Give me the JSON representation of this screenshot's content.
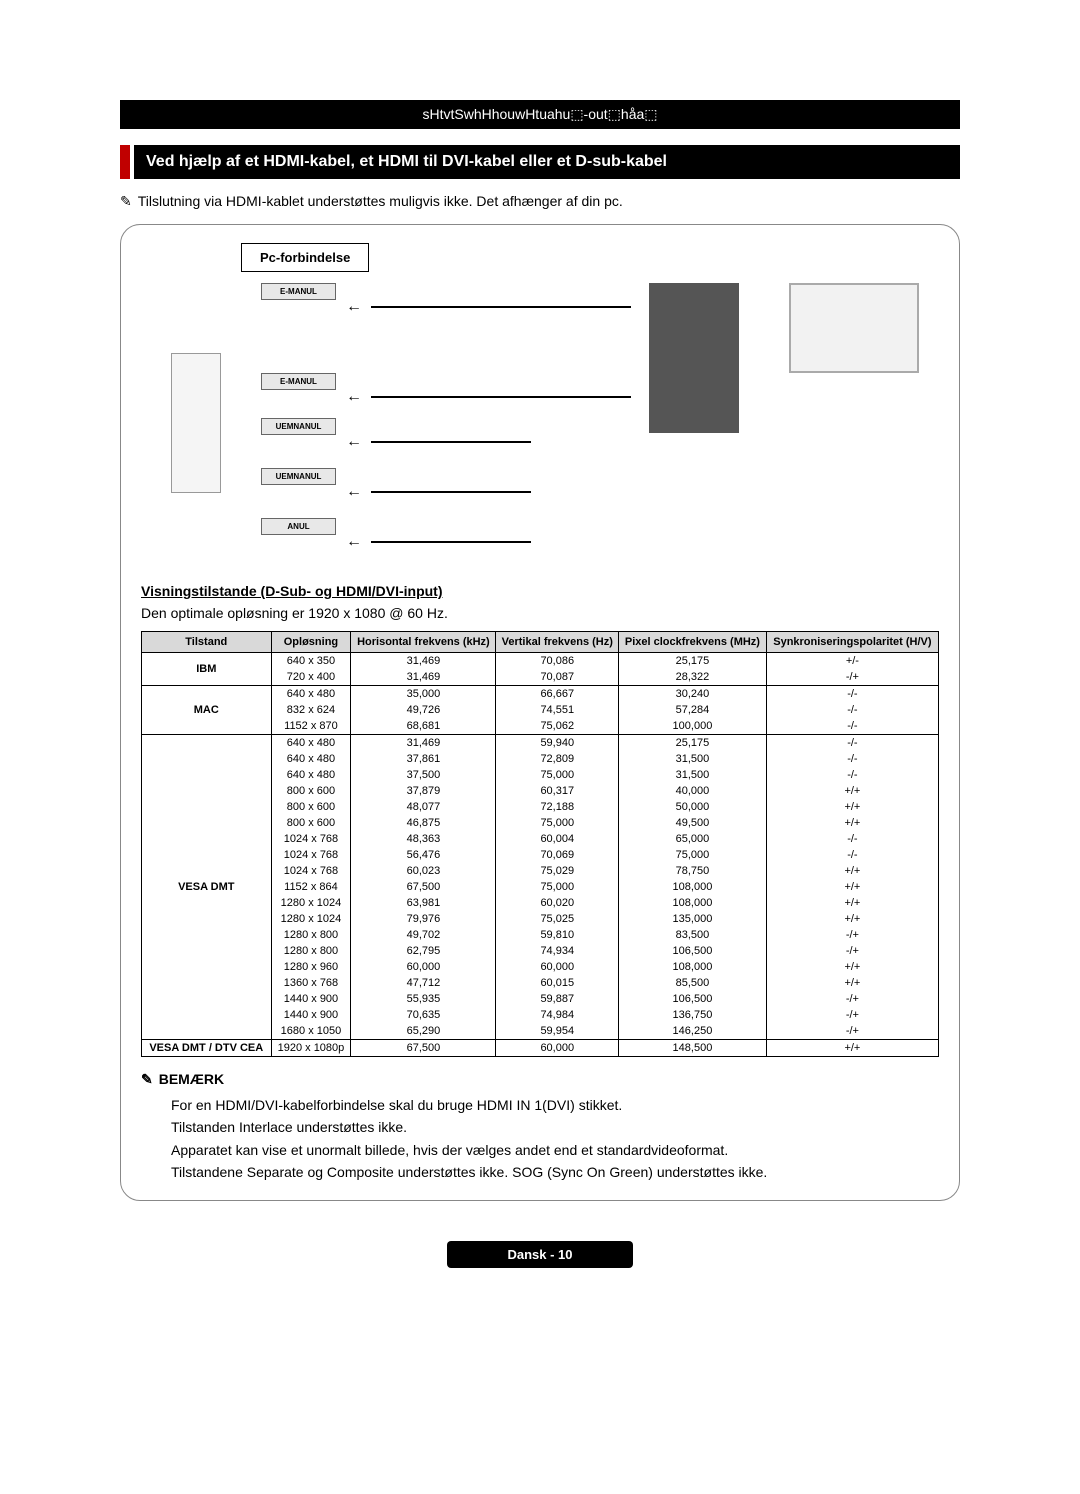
{
  "banner": "sHtvtSwhHhouwHtuahu⬚-out⬚håa⬚",
  "section_title": "Ved hjælp af et HDMI-kabel, et HDMI til DVI-kabel eller et D-sub-kabel",
  "top_note": "Tilslutning via HDMI-kablet understøttes muligvis ikke. Det afhænger af din pc.",
  "conn_label": "Pc-forbindelse",
  "port1": "E-MANUL",
  "port2": "E-MANUL",
  "port3": "UEMNANUL",
  "port4": "UEMNANUL",
  "port5": "ANUL",
  "subsection": "Visningstilstande (D-Sub- og HDMI/DVI-input)",
  "sub_text": "Den optimale opløsning er 1920 x 1080 @ 60 Hz.",
  "headers": {
    "h1": "Tilstand",
    "h2": "Opløsning",
    "h3": "Horisontal frekvens (kHz)",
    "h4": "Vertikal frekvens (Hz)",
    "h5": "Pixel clockfrekvens (MHz)",
    "h6": "Synkroniseringspolaritet (H/V)"
  },
  "groups": [
    {
      "mode": "IBM",
      "rows": [
        [
          "640 x 350",
          "31,469",
          "70,086",
          "25,175",
          "+/-"
        ],
        [
          "720 x 400",
          "31,469",
          "70,087",
          "28,322",
          "-/+"
        ]
      ]
    },
    {
      "mode": "MAC",
      "rows": [
        [
          "640 x 480",
          "35,000",
          "66,667",
          "30,240",
          "-/-"
        ],
        [
          "832 x 624",
          "49,726",
          "74,551",
          "57,284",
          "-/-"
        ],
        [
          "1152 x 870",
          "68,681",
          "75,062",
          "100,000",
          "-/-"
        ]
      ]
    },
    {
      "mode": "VESA DMT",
      "rows": [
        [
          "640 x 480",
          "31,469",
          "59,940",
          "25,175",
          "-/-"
        ],
        [
          "640 x 480",
          "37,861",
          "72,809",
          "31,500",
          "-/-"
        ],
        [
          "640 x 480",
          "37,500",
          "75,000",
          "31,500",
          "-/-"
        ],
        [
          "800 x 600",
          "37,879",
          "60,317",
          "40,000",
          "+/+"
        ],
        [
          "800 x 600",
          "48,077",
          "72,188",
          "50,000",
          "+/+"
        ],
        [
          "800 x 600",
          "46,875",
          "75,000",
          "49,500",
          "+/+"
        ],
        [
          "1024 x 768",
          "48,363",
          "60,004",
          "65,000",
          "-/-"
        ],
        [
          "1024 x 768",
          "56,476",
          "70,069",
          "75,000",
          "-/-"
        ],
        [
          "1024 x 768",
          "60,023",
          "75,029",
          "78,750",
          "+/+"
        ],
        [
          "1152 x 864",
          "67,500",
          "75,000",
          "108,000",
          "+/+"
        ],
        [
          "1280 x 1024",
          "63,981",
          "60,020",
          "108,000",
          "+/+"
        ],
        [
          "1280 x 1024",
          "79,976",
          "75,025",
          "135,000",
          "+/+"
        ],
        [
          "1280 x 800",
          "49,702",
          "59,810",
          "83,500",
          "-/+"
        ],
        [
          "1280 x 800",
          "62,795",
          "74,934",
          "106,500",
          "-/+"
        ],
        [
          "1280 x 960",
          "60,000",
          "60,000",
          "108,000",
          "+/+"
        ],
        [
          "1360 x 768",
          "47,712",
          "60,015",
          "85,500",
          "+/+"
        ],
        [
          "1440 x 900",
          "55,935",
          "59,887",
          "106,500",
          "-/+"
        ],
        [
          "1440 x 900",
          "70,635",
          "74,984",
          "136,750",
          "-/+"
        ],
        [
          "1680 x 1050",
          "65,290",
          "59,954",
          "146,250",
          "-/+"
        ]
      ]
    },
    {
      "mode": "VESA DMT / DTV CEA",
      "rows": [
        [
          "1920 x 1080p",
          "67,500",
          "60,000",
          "148,500",
          "+/+"
        ]
      ]
    }
  ],
  "remark_label": "BEMÆRK",
  "remarks": [
    "For en HDMI/DVI-kabelforbindelse skal du bruge HDMI IN 1(DVI) stikket.",
    "Tilstanden Interlace understøttes ikke.",
    "Apparatet kan vise et unormalt billede, hvis der vælges andet end et standardvideoformat.",
    "Tilstandene Separate og Composite understøttes ikke. SOG (Sync On Green) understøttes ikke."
  ],
  "footer": "Dansk - 10"
}
